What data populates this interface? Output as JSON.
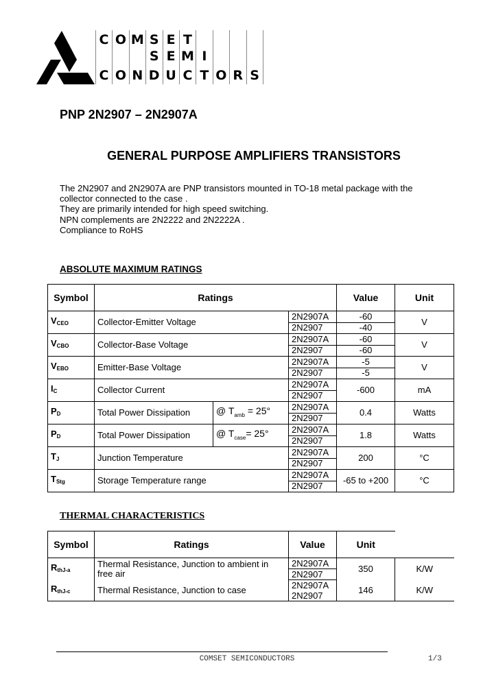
{
  "logo": {
    "rows": [
      "COMSET",
      "SEMI",
      "CONDUCTORS"
    ]
  },
  "part_title": "PNP 2N2907 – 2N2907A",
  "main_title": "GENERAL PURPOSE AMPLIFIERS TRANSISTORS",
  "intro": [
    "The 2N2907 and 2N2907A are PNP  transistors mounted in TO-18 metal package with the",
    "collector connected to the case .",
    "They are primarily intended for high speed switching.",
    "NPN complements are 2N2222 and 2N2222A .",
    "Compliance to RoHS"
  ],
  "abs_max": {
    "heading": "ABSOLUTE MAXIMUM RATINGS",
    "headers": {
      "symbol": "Symbol",
      "ratings": "Ratings",
      "value": "Value",
      "unit": "Unit"
    },
    "rows": [
      {
        "sym": "V",
        "sub": "CEO",
        "rating": "Collector-Emitter Voltage",
        "cond": null,
        "parts": [
          "2N2907A",
          "2N2907"
        ],
        "values": [
          "-60",
          "-40"
        ],
        "unit": "V"
      },
      {
        "sym": "V",
        "sub": "CBO",
        "rating": "Collector-Base Voltage",
        "cond": null,
        "parts": [
          "2N2907A",
          "2N2907"
        ],
        "values": [
          "-60",
          "-60"
        ],
        "unit": "V"
      },
      {
        "sym": "V",
        "sub": "EBO",
        "rating": "Emitter-Base Voltage",
        "cond": null,
        "parts": [
          "2N2907A",
          "2N2907"
        ],
        "values": [
          "-5",
          "-5"
        ],
        "unit": "V"
      },
      {
        "sym": "I",
        "sub": "C",
        "rating": "Collector Current",
        "cond": null,
        "parts": [
          "2N2907A",
          "2N2907"
        ],
        "values": [
          "-600"
        ],
        "unit": "mA"
      },
      {
        "sym": "P",
        "sub": "D",
        "rating": "Total Power Dissipation",
        "cond": {
          "pre": "@ T",
          "sub": "amb",
          "post": " = 25°"
        },
        "parts": [
          "2N2907A",
          "2N2907"
        ],
        "values": [
          "0.4"
        ],
        "unit": "Watts"
      },
      {
        "sym": "P",
        "sub": "D",
        "rating": "Total Power Dissipation",
        "cond": {
          "pre": "@ T",
          "sub": "case",
          "post": "= 25°"
        },
        "parts": [
          "2N2907A",
          "2N2907"
        ],
        "values": [
          "1.8"
        ],
        "unit": "Watts"
      },
      {
        "sym": "T",
        "sub": "J",
        "rating": "Junction Temperature",
        "cond": null,
        "parts": [
          "2N2907A",
          "2N2907"
        ],
        "values": [
          "200"
        ],
        "unit": "°C"
      },
      {
        "sym": "T",
        "sub": "Stg",
        "rating": "Storage Temperature range",
        "cond": null,
        "parts": [
          "2N2907A",
          "2N2907"
        ],
        "values": [
          "-65 to +200"
        ],
        "unit": "°C"
      }
    ]
  },
  "thermal": {
    "heading": "THERMAL CHARACTERISTICS",
    "headers": {
      "symbol": "Symbol",
      "ratings": "Ratings",
      "value": "Value",
      "unit": "Unit"
    },
    "rows": [
      {
        "sym": "R",
        "sub": "thJ-a",
        "rating": [
          "Thermal Resistance, Junction to ambient in",
          "free air"
        ],
        "parts": [
          "2N2907A",
          "2N2907"
        ],
        "value": "350",
        "unit": "K/W"
      },
      {
        "sym": "R",
        "sub": "thJ-c",
        "rating": [
          "Thermal Resistance, Junction to case"
        ],
        "parts": [
          "2N2907A",
          "2N2907"
        ],
        "value": "146",
        "unit": "K/W"
      }
    ]
  },
  "footer": {
    "company": "COMSET  SEMICONDUCTORS",
    "page": "1/3"
  }
}
